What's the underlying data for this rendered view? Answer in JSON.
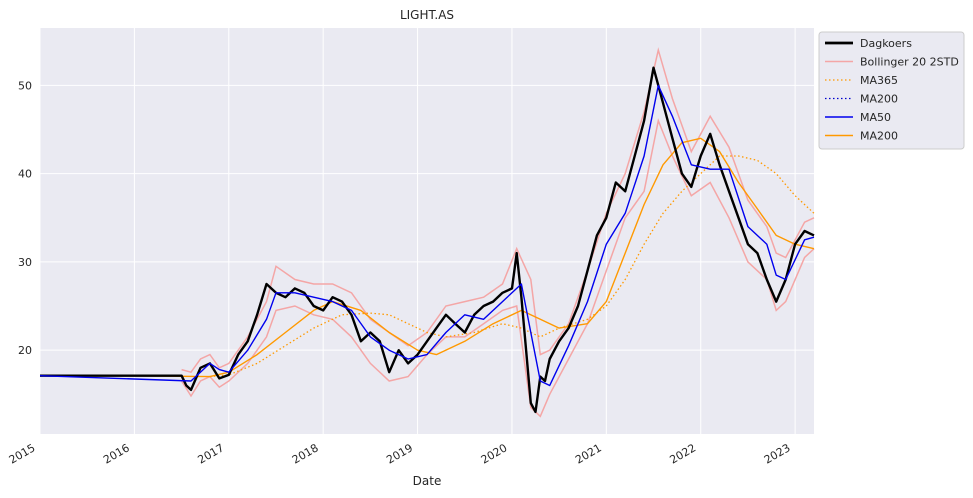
{
  "chart_data": {
    "type": "line",
    "title": "LIGHT.AS",
    "xlabel": "Date",
    "ylabel": "",
    "xlim": [
      2015.0,
      2023.2
    ],
    "ylim": [
      10.5,
      56.5
    ],
    "x_ticks": [
      2015,
      2016,
      2017,
      2018,
      2019,
      2020,
      2021,
      2022,
      2023
    ],
    "x_tick_labels": [
      "2015",
      "2016",
      "2017",
      "2018",
      "2019",
      "2020",
      "2021",
      "2022",
      "2023"
    ],
    "y_ticks": [
      20,
      30,
      40,
      50
    ],
    "y_tick_labels": [
      "20",
      "30",
      "40",
      "50"
    ],
    "grid": true,
    "background": "#eaeaf2",
    "legend_position": "outside-top-right",
    "series": [
      {
        "name": "Dagkoers",
        "color": "#000000",
        "style": "solid",
        "x": [
          2015.0,
          2016.5,
          2016.55,
          2016.6,
          2016.7,
          2016.8,
          2016.9,
          2017.0,
          2017.1,
          2017.2,
          2017.3,
          2017.4,
          2017.5,
          2017.6,
          2017.7,
          2017.8,
          2017.9,
          2018.0,
          2018.1,
          2018.2,
          2018.3,
          2018.4,
          2018.5,
          2018.6,
          2018.7,
          2018.8,
          2018.9,
          2019.0,
          2019.1,
          2019.2,
          2019.3,
          2019.4,
          2019.5,
          2019.6,
          2019.7,
          2019.8,
          2019.9,
          2020.0,
          2020.05,
          2020.1,
          2020.15,
          2020.2,
          2020.25,
          2020.3,
          2020.35,
          2020.4,
          2020.5,
          2020.6,
          2020.7,
          2020.8,
          2020.9,
          2021.0,
          2021.1,
          2021.2,
          2021.3,
          2021.4,
          2021.5,
          2021.55,
          2021.6,
          2021.7,
          2021.8,
          2021.9,
          2022.0,
          2022.1,
          2022.2,
          2022.3,
          2022.4,
          2022.5,
          2022.6,
          2022.7,
          2022.8,
          2022.9,
          2023.0,
          2023.1,
          2023.2
        ],
        "values": [
          17.1,
          17.1,
          16.0,
          15.5,
          18.0,
          18.5,
          16.8,
          17.2,
          19.5,
          21.0,
          24.0,
          27.5,
          26.5,
          26.0,
          27.0,
          26.5,
          25.0,
          24.5,
          26.0,
          25.5,
          24.0,
          21.0,
          22.0,
          21.0,
          17.5,
          20.0,
          18.5,
          19.5,
          21.0,
          22.5,
          24.0,
          23.0,
          22.0,
          24.0,
          25.0,
          25.5,
          26.5,
          27.0,
          31.0,
          26.0,
          20.0,
          14.0,
          13.0,
          17.0,
          16.5,
          19.0,
          21.0,
          22.5,
          25.0,
          29.0,
          33.0,
          35.0,
          39.0,
          38.0,
          42.0,
          46.0,
          52.0,
          50.0,
          48.0,
          44.0,
          40.0,
          38.5,
          42.0,
          44.5,
          41.0,
          38.0,
          35.0,
          32.0,
          31.0,
          28.0,
          25.5,
          28.0,
          32.0,
          33.5,
          33.0
        ]
      },
      {
        "name": "Bollinger 20 2STD",
        "color": "#f4a6a6",
        "style": "solid",
        "x": [
          2016.5,
          2016.6,
          2016.7,
          2016.8,
          2016.9,
          2017.0,
          2017.2,
          2017.4,
          2017.5,
          2017.7,
          2017.9,
          2018.1,
          2018.3,
          2018.5,
          2018.7,
          2018.9,
          2019.1,
          2019.3,
          2019.5,
          2019.7,
          2019.9,
          2020.05,
          2020.2,
          2020.3,
          2020.4,
          2020.6,
          2020.8,
          2021.0,
          2021.2,
          2021.4,
          2021.55,
          2021.7,
          2021.9,
          2022.1,
          2022.3,
          2022.5,
          2022.7,
          2022.8,
          2022.9,
          2023.1,
          2023.2
        ],
        "upper": [
          17.8,
          17.5,
          19.0,
          19.5,
          18.0,
          18.5,
          21.5,
          25.5,
          29.5,
          28.0,
          27.5,
          27.5,
          26.5,
          23.5,
          22.0,
          20.5,
          22.0,
          25.0,
          25.5,
          26.0,
          27.5,
          31.5,
          28.0,
          19.5,
          20.0,
          23.0,
          29.0,
          35.5,
          40.0,
          47.0,
          54.0,
          48.5,
          42.5,
          46.5,
          43.0,
          37.0,
          34.0,
          31.0,
          30.5,
          34.5,
          35.0
        ],
        "lower": [
          16.5,
          14.8,
          16.5,
          17.0,
          15.8,
          16.5,
          18.5,
          21.5,
          24.5,
          25.0,
          24.0,
          23.5,
          21.5,
          18.5,
          16.5,
          17.0,
          19.5,
          21.5,
          21.5,
          23.0,
          24.5,
          25.0,
          13.5,
          12.5,
          15.0,
          19.0,
          23.0,
          29.0,
          35.0,
          38.0,
          46.0,
          42.0,
          37.5,
          39.0,
          35.0,
          30.0,
          28.0,
          24.5,
          25.5,
          30.5,
          31.5
        ]
      },
      {
        "name": "MA365",
        "color": "#ff9900",
        "style": "dotted",
        "x": [
          2016.8,
          2017.0,
          2017.3,
          2017.6,
          2017.9,
          2018.2,
          2018.5,
          2018.7,
          2018.9,
          2019.1,
          2019.3,
          2019.6,
          2019.9,
          2020.1,
          2020.3,
          2020.5,
          2020.8,
          2021.0,
          2021.2,
          2021.4,
          2021.6,
          2021.8,
          2022.0,
          2022.2,
          2022.4,
          2022.6,
          2022.8,
          2023.0,
          2023.2
        ],
        "values": [
          17.0,
          17.2,
          18.5,
          20.5,
          22.5,
          24.0,
          24.2,
          24.0,
          23.0,
          22.0,
          21.5,
          22.0,
          23.0,
          22.5,
          21.5,
          22.5,
          23.5,
          25.0,
          28.0,
          32.0,
          35.5,
          38.0,
          40.0,
          42.0,
          42.0,
          41.5,
          40.0,
          37.5,
          35.5
        ]
      },
      {
        "name": "MA200",
        "color": "#0000cc",
        "style": "dotted",
        "x": [
          2015.0,
          2015.8
        ],
        "values": [
          17.1,
          17.1
        ]
      },
      {
        "name": "MA50",
        "color": "#0000ee",
        "style": "solid",
        "x": [
          2015.0,
          2016.6,
          2016.8,
          2016.9,
          2017.0,
          2017.2,
          2017.4,
          2017.5,
          2017.7,
          2017.9,
          2018.1,
          2018.3,
          2018.5,
          2018.7,
          2018.9,
          2019.1,
          2019.3,
          2019.5,
          2019.7,
          2019.9,
          2020.1,
          2020.2,
          2020.3,
          2020.4,
          2020.6,
          2020.8,
          2021.0,
          2021.2,
          2021.4,
          2021.55,
          2021.7,
          2021.9,
          2022.1,
          2022.3,
          2022.5,
          2022.7,
          2022.8,
          2022.9,
          2023.1,
          2023.2
        ],
        "values": [
          17.1,
          16.5,
          18.5,
          17.8,
          17.5,
          20.0,
          23.5,
          26.5,
          26.5,
          26.0,
          25.5,
          24.5,
          21.5,
          20.0,
          19.0,
          19.5,
          22.0,
          24.0,
          23.5,
          25.5,
          27.5,
          22.0,
          16.5,
          16.0,
          20.5,
          25.5,
          32.0,
          35.5,
          42.0,
          50.0,
          46.5,
          41.0,
          40.5,
          40.5,
          34.0,
          32.0,
          28.5,
          28.0,
          32.5,
          32.8
        ]
      },
      {
        "name": "MA200",
        "color": "#ff9900",
        "style": "solid",
        "x": [
          2015.8,
          2016.8,
          2017.0,
          2017.3,
          2017.6,
          2017.9,
          2018.1,
          2018.4,
          2018.7,
          2019.0,
          2019.2,
          2019.5,
          2019.8,
          2020.1,
          2020.3,
          2020.5,
          2020.8,
          2021.0,
          2021.2,
          2021.4,
          2021.6,
          2021.8,
          2022.0,
          2022.2,
          2022.4,
          2022.6,
          2022.8,
          2023.0,
          2023.2
        ],
        "values": [
          17.1,
          17.0,
          17.5,
          19.5,
          22.0,
          24.5,
          25.5,
          24.5,
          22.0,
          20.0,
          19.5,
          21.0,
          23.0,
          24.5,
          23.5,
          22.5,
          23.0,
          25.5,
          31.0,
          36.5,
          41.0,
          43.5,
          44.0,
          42.5,
          39.0,
          36.0,
          33.0,
          32.0,
          31.5
        ]
      }
    ]
  }
}
